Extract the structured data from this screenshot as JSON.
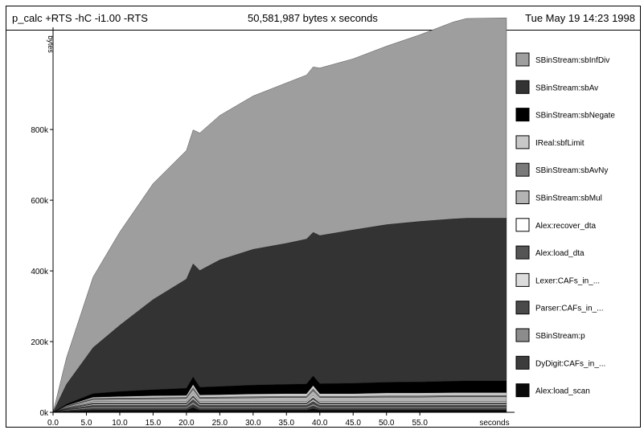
{
  "header": {
    "program": "p_calc +RTS -hC -i1.00 -RTS",
    "total": "50,581,987 bytes x seconds",
    "date": "Tue May 19 14:23 1998"
  },
  "chart_data": {
    "type": "area",
    "stacked": true,
    "ylabel": "bytes",
    "xlabel": "seconds",
    "xlim": [
      0,
      68
    ],
    "ylim": [
      0,
      1080000
    ],
    "x_ticks": [
      0,
      5,
      10,
      15,
      20,
      25,
      30,
      35,
      40,
      45,
      50,
      55
    ],
    "x_tick_labels": [
      "0.0",
      "5.0",
      "10.0",
      "15.0",
      "20.0",
      "25.0",
      "30.0",
      "35.0",
      "40.0",
      "45.0",
      "50.0",
      "55.0"
    ],
    "y_ticks": [
      0,
      200000,
      400000,
      600000,
      800000
    ],
    "y_tick_labels": [
      "0k",
      "200k",
      "400k",
      "600k",
      "800k"
    ],
    "x": [
      0,
      2,
      6,
      10,
      15,
      20,
      21,
      22,
      25,
      30,
      35,
      38,
      39,
      40,
      45,
      50,
      55,
      60,
      62,
      68
    ],
    "series": [
      {
        "name": "Alex:load_scan",
        "color": "#0a0a0a",
        "values": [
          0,
          3000,
          6000,
          6000,
          6000,
          6000,
          13000,
          6000,
          6000,
          6000,
          6000,
          6000,
          10000,
          6000,
          6000,
          6000,
          6000,
          6000,
          6000,
          6000
        ]
      },
      {
        "name": "DyDigit:CAFs_in_...",
        "color": "#3c3c3c",
        "values": [
          0,
          2000,
          5000,
          5000,
          5000,
          5000,
          9000,
          5000,
          5000,
          5000,
          5000,
          5000,
          8000,
          5000,
          5000,
          5000,
          5000,
          5000,
          5000,
          5000
        ]
      },
      {
        "name": "SBinStream:p",
        "color": "#8c8c8c",
        "values": [
          0,
          2000,
          4000,
          4000,
          4000,
          4000,
          7000,
          4000,
          4000,
          4000,
          4000,
          4000,
          6000,
          4000,
          4000,
          4000,
          4000,
          4000,
          4000,
          4000
        ]
      },
      {
        "name": "Parser:CAFs_in_...",
        "color": "#4a4a4a",
        "values": [
          0,
          2000,
          5000,
          5000,
          5000,
          5000,
          8000,
          5000,
          5000,
          5000,
          5000,
          5000,
          7000,
          5000,
          5000,
          5000,
          5000,
          5000,
          5000,
          5000
        ]
      },
      {
        "name": "Lexer:CAFs_in_...",
        "color": "#dcdcdc",
        "values": [
          0,
          1000,
          3000,
          3000,
          3000,
          3000,
          5000,
          3000,
          3000,
          3000,
          3000,
          3000,
          5000,
          3000,
          3000,
          3000,
          3000,
          3000,
          3000,
          3000
        ]
      },
      {
        "name": "Alex:load_dta",
        "color": "#555555",
        "values": [
          0,
          2000,
          4000,
          4000,
          4000,
          4000,
          6000,
          4000,
          4000,
          4000,
          4000,
          4000,
          6000,
          4000,
          4000,
          4000,
          4000,
          4000,
          4000,
          4000
        ]
      },
      {
        "name": "Alex:recover_dta",
        "color": "#ffffff",
        "values": [
          0,
          1000,
          3000,
          3000,
          3000,
          3000,
          5000,
          3000,
          3000,
          3000,
          3000,
          3000,
          5000,
          3000,
          3000,
          3000,
          3000,
          3000,
          3000,
          3000
        ]
      },
      {
        "name": "SBinStream:sbMul",
        "color": "#b4b4b4",
        "values": [
          0,
          3000,
          6000,
          7000,
          8000,
          9000,
          12000,
          9000,
          10000,
          11000,
          12000,
          12000,
          14000,
          12000,
          12000,
          13000,
          13000,
          14000,
          14000,
          14000
        ]
      },
      {
        "name": "SBinStream:sbAvNy",
        "color": "#7a7a7a",
        "values": [
          0,
          1000,
          3000,
          3000,
          3000,
          3000,
          5000,
          3000,
          3000,
          3000,
          3000,
          3000,
          5000,
          3000,
          3000,
          3000,
          3000,
          3000,
          3000,
          3000
        ]
      },
      {
        "name": "IReal:sbfLimit",
        "color": "#c8c8c8",
        "values": [
          0,
          2000,
          4000,
          5000,
          6000,
          6000,
          9000,
          7000,
          7000,
          8000,
          8000,
          8000,
          10000,
          8000,
          8000,
          9000,
          9000,
          9000,
          9000,
          9000
        ]
      },
      {
        "name": "SBinStream:sbNegate",
        "color": "#000000",
        "values": [
          0,
          4000,
          10000,
          14000,
          17000,
          20000,
          21000,
          22000,
          23000,
          25000,
          26000,
          27000,
          27000,
          28000,
          29000,
          30000,
          31000,
          32000,
          33000,
          33000
        ]
      },
      {
        "name": "SBinStream:sbAv",
        "color": "#333333",
        "values": [
          0,
          56000,
          130000,
          187000,
          255000,
          309000,
          320000,
          330000,
          358000,
          384000,
          399000,
          410000,
          406000,
          419000,
          434000,
          446000,
          454000,
          459000,
          460000,
          460000
        ]
      },
      {
        "name": "SBinStream:sbInfDiv",
        "color": "#9e9e9e",
        "values": [
          0,
          75000,
          200000,
          264000,
          328000,
          364000,
          379000,
          389000,
          409000,
          434000,
          454000,
          464000,
          468000,
          474000,
          484000,
          505000,
          528000,
          557000,
          565000,
          567000
        ]
      }
    ]
  }
}
